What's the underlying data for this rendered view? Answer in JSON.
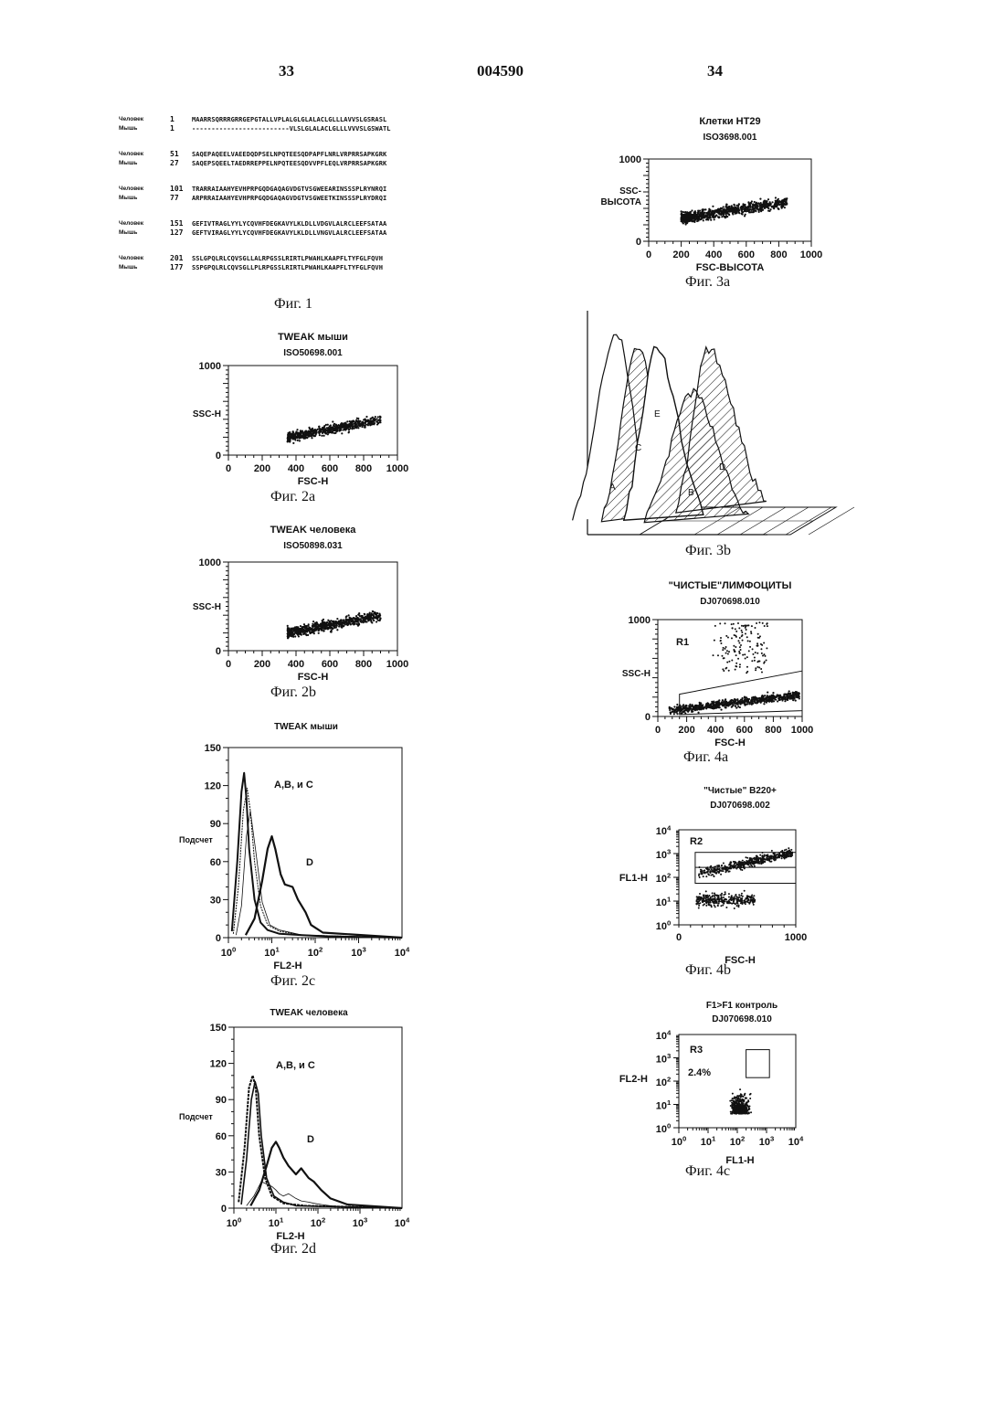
{
  "header": {
    "page_left": "33",
    "patent_number": "004590",
    "page_right": "34"
  },
  "fig1": {
    "label": "Фиг. 1",
    "blocks": [
      {
        "rows": [
          {
            "species": "Человек",
            "num": "1",
            "seq": "MAARRSQRRRGRRGEPGTALLVPLALGLGLALACLGLLLAVVSLGSRASL"
          },
          {
            "species": "Мышь",
            "num": "1",
            "seq": "-------------------------VLSLGLALACLGLLLVVVSLGSWATL"
          }
        ]
      },
      {
        "rows": [
          {
            "species": "Человек",
            "num": "51",
            "seq": "SAQEPAQEELVAEEDQDPSELNPQTEESQDPAPFLNRLVRPRRSAPKGRK"
          },
          {
            "species": "Мышь",
            "num": "27",
            "seq": "SAQEPSQEELTAEDRREPPELNPQTEESQDVVPFLEQLVRPRRSAPKGRK"
          }
        ]
      },
      {
        "rows": [
          {
            "species": "Человек",
            "num": "101",
            "seq": "TRARRAIAAHYEVHPRPGQDGAQAGVDGTVSGWEEARINSSSPLRYNRQI"
          },
          {
            "species": "Мышь",
            "num": "77",
            "seq": "ARPRRAIAAHYEVHPRPGQDGAQAGVDGTVSGWEETKINSSSPLRYDRQI"
          }
        ]
      },
      {
        "rows": [
          {
            "species": "Человек",
            "num": "151",
            "seq": "GEFIVTRAGLYYLYCQVHFDEGKAVYLKLDLLVDGVLALRCLEEFSATAA"
          },
          {
            "species": "Мышь",
            "num": "127",
            "seq": "GEFTVIRAGLYYLYCQVHFDEGKAVYLKLDLLVNGVLALRCLEEFSATAA"
          }
        ]
      },
      {
        "rows": [
          {
            "species": "Человек",
            "num": "201",
            "seq": "SSLGPQLRLCQVSGLLALRPGSSLRIRTLPWAHLKAAPFLTYFGLFQVH"
          },
          {
            "species": "Мышь",
            "num": "177",
            "seq": "SSPGPQLRLCQVSGLLPLRPGSSLRIRTLPWAHLKAAPFLTYFGLFQVH"
          }
        ]
      }
    ]
  },
  "fig2a": {
    "label": "Фиг. 2a",
    "chart_data": {
      "type": "scatter",
      "title": "TWEAK мыши",
      "subtitle": "ISO50698.001",
      "xlabel": "FSC-H",
      "ylabel": "SSC-H",
      "xlim": [
        0,
        1000
      ],
      "ylim": [
        0,
        1000
      ],
      "xticks": [
        "0",
        "200",
        "400",
        "600",
        "800",
        "1000"
      ],
      "yticks": [
        "0",
        "1000"
      ],
      "cluster": {
        "x_range": [
          350,
          900
        ],
        "y_center": 200
      }
    }
  },
  "fig2b": {
    "label": "Фиг. 2b",
    "chart_data": {
      "type": "scatter",
      "title": "TWEAK человека",
      "subtitle": "ISO50898.031",
      "xlabel": "FSC-H",
      "ylabel": "SSC-H",
      "xlim": [
        0,
        1000
      ],
      "ylim": [
        0,
        1000
      ],
      "xticks": [
        "0",
        "200",
        "400",
        "600",
        "800",
        "1000"
      ],
      "yticks": [
        "0",
        "1000"
      ],
      "cluster": {
        "x_range": [
          350,
          900
        ],
        "y_center": 200
      }
    }
  },
  "fig2c": {
    "label": "Фиг. 2c",
    "chart_data": {
      "type": "line",
      "title": "TWEAK мыши",
      "xlabel": "FL2-H",
      "ylabel": "Подсчет",
      "xscale": "log",
      "xlim": [
        1,
        10000
      ],
      "ylim": [
        0,
        150
      ],
      "yticks": [
        "0",
        "30",
        "60",
        "90",
        "120",
        "150"
      ],
      "xticks": [
        "10⁰",
        "10¹",
        "10²",
        "10³",
        "10⁴"
      ],
      "annotations": [
        "A,B, и C",
        "D"
      ],
      "series": [
        {
          "x": [
            1.2,
            1.6,
            2.0,
            2.3,
            2.6,
            3.0,
            4.0,
            5.5,
            8,
            15,
            50,
            200,
            10000
          ],
          "y": [
            5,
            60,
            115,
            130,
            110,
            70,
            30,
            12,
            6,
            3,
            2,
            1,
            0
          ]
        },
        {
          "x": [
            1.3,
            1.7,
            2.2,
            2.7,
            3.2,
            4.0,
            5.5,
            8,
            15,
            50,
            10000
          ],
          "y": [
            3,
            40,
            100,
            118,
            100,
            60,
            25,
            10,
            5,
            2,
            0
          ]
        },
        {
          "x": [
            1.5,
            2.0,
            2.6,
            3.2,
            4.2,
            6,
            9,
            15,
            50,
            10000
          ],
          "y": [
            2,
            25,
            80,
            100,
            70,
            28,
            10,
            6,
            2,
            0
          ]
        },
        {
          "x": [
            2.5,
            4,
            6,
            8,
            10,
            12,
            16,
            20,
            30,
            40,
            60,
            80,
            150,
            10000
          ],
          "y": [
            2,
            15,
            45,
            70,
            80,
            70,
            50,
            42,
            40,
            30,
            20,
            10,
            4,
            0
          ]
        }
      ]
    }
  },
  "fig2d": {
    "label": "Фиг. 2d",
    "chart_data": {
      "type": "line",
      "title": "TWEAK человека",
      "xlabel": "FL2-H",
      "ylabel": "Подсчет",
      "xscale": "log",
      "xlim": [
        1,
        10000
      ],
      "ylim": [
        0,
        150
      ],
      "yticks": [
        "0",
        "30",
        "60",
        "90",
        "120",
        "150"
      ],
      "ytick_labels_shown": [
        "0",
        "30",
        "60",
        "90",
        "120",
        "150"
      ],
      "xticks": [
        "10⁰",
        "10¹",
        "10²",
        "10³",
        "10⁴"
      ],
      "annotations": [
        "A,B, и C",
        "D"
      ],
      "series": [
        {
          "x": [
            1.3,
            1.8,
            2.3,
            2.8,
            3.3,
            4.0,
            5.5,
            8,
            15,
            50,
            10000
          ],
          "y": [
            5,
            50,
            100,
            110,
            100,
            60,
            25,
            10,
            4,
            2,
            0
          ]
        },
        {
          "x": [
            1.5,
            2.0,
            2.6,
            3.2,
            3.8,
            4.5,
            6,
            9,
            15,
            30,
            10000
          ],
          "y": [
            3,
            40,
            90,
            105,
            95,
            60,
            25,
            10,
            5,
            2,
            0
          ]
        },
        {
          "x": [
            2.0,
            3.0,
            4.5,
            6,
            8,
            10,
            12,
            15,
            20,
            30,
            40,
            60,
            80,
            120,
            200,
            500,
            10000
          ],
          "y": [
            2,
            10,
            22,
            20,
            18,
            15,
            12,
            10,
            12,
            8,
            6,
            5,
            4,
            3,
            2,
            1,
            0
          ]
        },
        {
          "x": [
            2.5,
            4,
            6,
            8,
            10,
            12,
            15,
            20,
            30,
            40,
            60,
            80,
            120,
            200,
            500,
            10000
          ],
          "y": [
            2,
            15,
            35,
            50,
            55,
            50,
            42,
            35,
            28,
            33,
            25,
            22,
            15,
            8,
            3,
            0
          ]
        }
      ]
    }
  },
  "fig3a": {
    "label": "Фиг. 3а",
    "chart_data": {
      "type": "scatter",
      "title": "Клетки HT29",
      "subtitle": "ISO3698.001",
      "xlabel": "FSC-ВЫСОТА",
      "ylabel": "SSC-\nВЫСОТА",
      "xlim": [
        0,
        1000
      ],
      "ylim": [
        0,
        1000
      ],
      "xticks": [
        "0",
        "200",
        "400",
        "600",
        "800",
        "1000"
      ],
      "yticks": [
        "0",
        "1000"
      ],
      "cluster": {
        "x_range": [
          200,
          850
        ],
        "y_center": 280
      }
    }
  },
  "fig3b": {
    "label": "Фиг. 3b",
    "chart_data": {
      "type": "area",
      "series_labels": [
        "A",
        "C",
        "E",
        "B",
        "D"
      ]
    }
  },
  "fig4a": {
    "label": "Фиг. 4а",
    "chart_data": {
      "type": "scatter",
      "title": "\"ЧИСТЫЕ\"ЛИМФОЦИТЫ",
      "subtitle": "DJ070698.010",
      "xlabel": "FSC-H",
      "ylabel": "SSC-H",
      "region": "R1",
      "xlim": [
        0,
        1000
      ],
      "ylim": [
        0,
        1000
      ],
      "xticks": [
        "0",
        "200",
        "400",
        "600",
        "800",
        "1000"
      ],
      "yticks": [
        "0",
        "1000"
      ]
    }
  },
  "fig4b": {
    "label": "Фиг. 4b",
    "chart_data": {
      "type": "scatter",
      "title": "\"Чистые\" B220+",
      "subtitle": "DJ070698.002",
      "xlabel": "FSC-H",
      "ylabel": "FL1-H",
      "region": "R2",
      "yscale": "log",
      "xlim": [
        0,
        1000
      ],
      "ylim": [
        1,
        10000
      ],
      "xticks": [
        "0",
        "1000"
      ],
      "yticks": [
        "10⁰",
        "10¹",
        "10²",
        "10³",
        "10⁴"
      ]
    }
  },
  "fig4c": {
    "label": "Фиг. 4с",
    "chart_data": {
      "type": "scatter",
      "title": "F1>F1 контроль",
      "subtitle": "DJ070698.010",
      "xlabel": "FL1-H",
      "ylabel": "FL2-H",
      "region": "R3",
      "region_percent": "2.4%",
      "xscale": "log",
      "yscale": "log",
      "xlim": [
        1,
        10000
      ],
      "ylim": [
        1,
        10000
      ],
      "xticks": [
        "10⁰",
        "10¹",
        "10²",
        "10³",
        "10⁴"
      ],
      "yticks": [
        "10⁰",
        "10¹",
        "10²",
        "10³",
        "10⁴"
      ]
    }
  }
}
